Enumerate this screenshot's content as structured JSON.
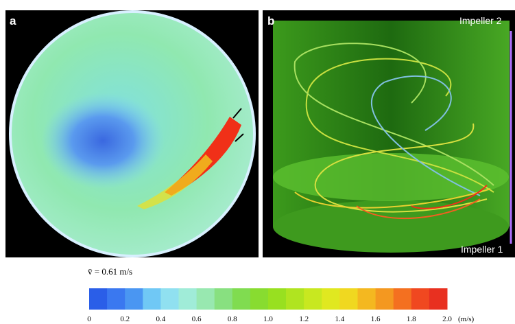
{
  "panels": [
    {
      "label": "a"
    },
    {
      "label": "b",
      "annotations": [
        "Impeller 2",
        "Impeller 1"
      ]
    }
  ],
  "annotation": "v̄ = 0.61 m/s",
  "colorbar": {
    "ticks": [
      "0",
      "0.2",
      "0.4",
      "0.6",
      "0.8",
      "1.0",
      "1.2",
      "1.4",
      "1.6",
      "1.8",
      "2.0"
    ],
    "unit": "(m/s)",
    "colors": [
      "#2a5ee8",
      "#3a78f0",
      "#4a96f2",
      "#70c8f5",
      "#90e0f0",
      "#a0ecd8",
      "#98e8b0",
      "#88e080",
      "#80dc50",
      "#88dc30",
      "#98e020",
      "#b0e420",
      "#c8e820",
      "#e0e820",
      "#f0d820",
      "#f4b820",
      "#f49820",
      "#f47020",
      "#f04820",
      "#e83020"
    ]
  }
}
